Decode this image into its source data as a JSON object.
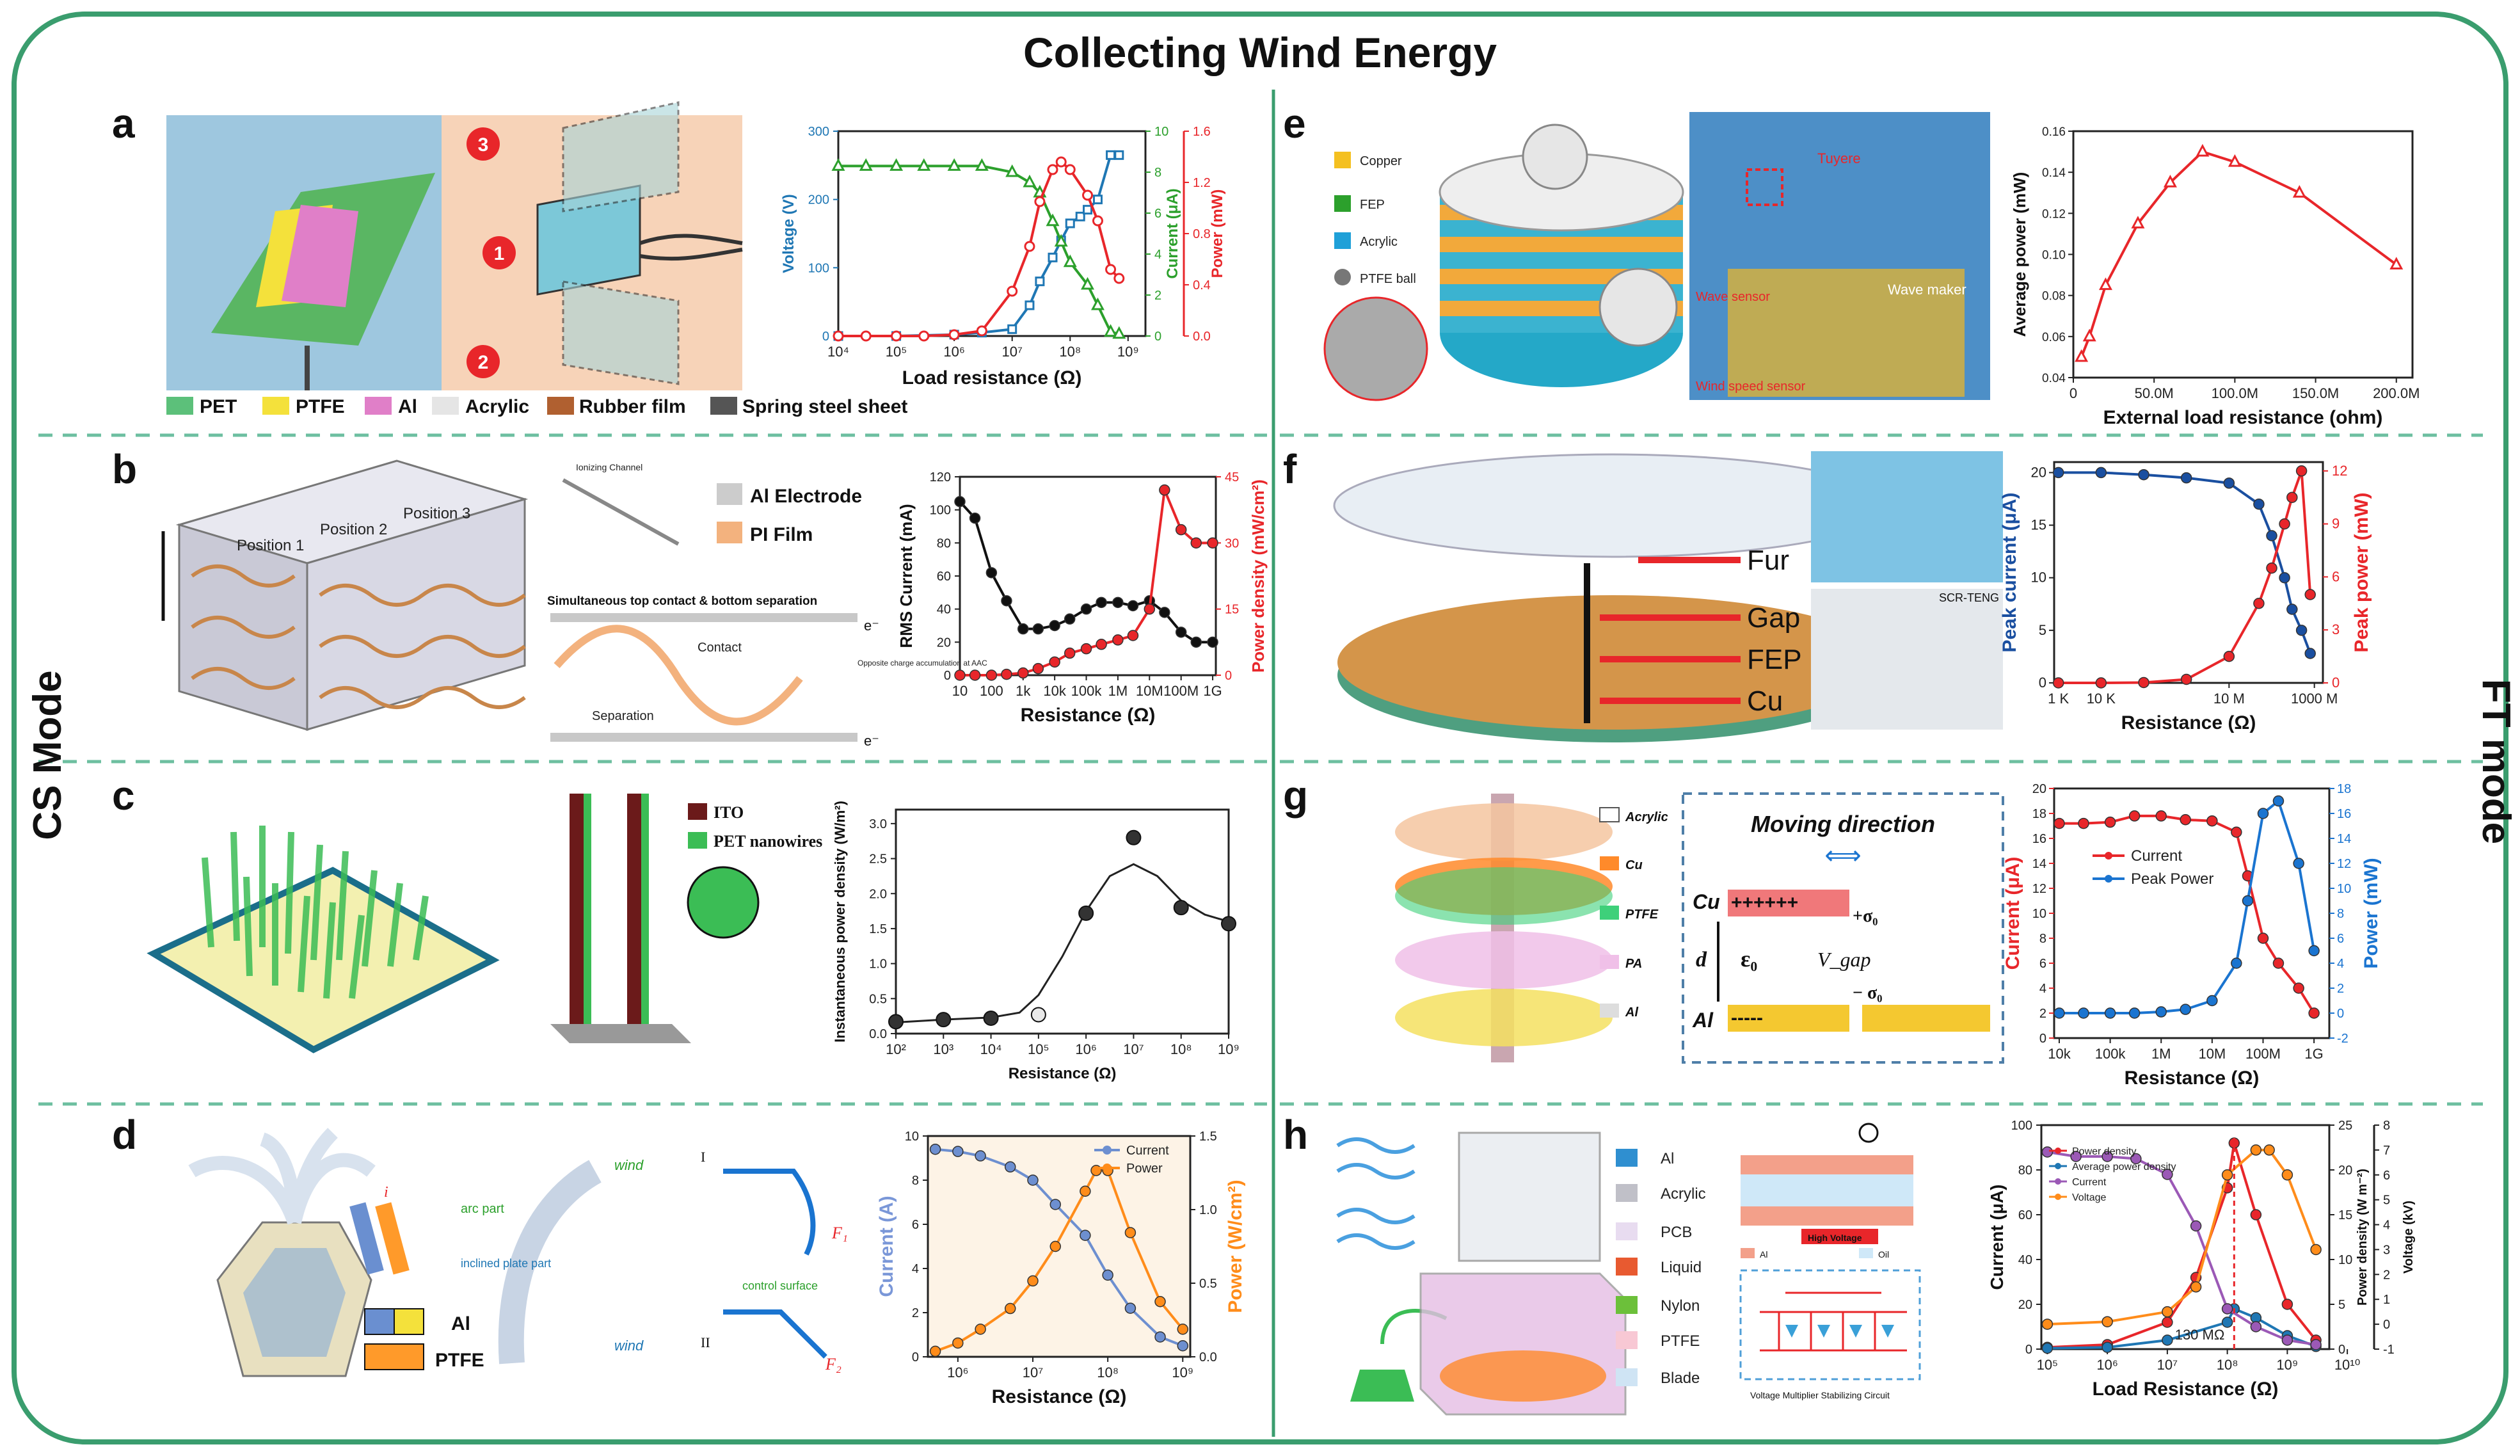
{
  "title": "Collecting Wind Energy",
  "side_labels": {
    "left": "CS Mode",
    "right": "FT mode"
  },
  "colors": {
    "frame": "#3a9d6e",
    "dash": "#6dbfa0",
    "blue": "#1f77b4",
    "green": "#2ca02c",
    "red": "#e8262a",
    "orange": "#ff7f0e",
    "navy": "#1a4fa0"
  },
  "panels": {
    "a": {
      "letter": "a",
      "legend": [
        "PET",
        "PTFE",
        "Al",
        "Acrylic",
        "Rubber film",
        "Spring steel sheet"
      ],
      "markers": [
        "3",
        "1",
        "2"
      ],
      "chart": {
        "xlabel": "Load resistance (Ω)",
        "ylabels": [
          "Voltage (V)",
          "Current (μA)",
          "Power (mW)"
        ],
        "xticks": [
          "10⁴",
          "10⁵",
          "10⁶",
          "10⁷",
          "10⁸",
          "10⁹"
        ],
        "y1ticks": [
          "0",
          "100",
          "200",
          "300"
        ],
        "y2ticks": [
          "0",
          "2",
          "4",
          "6",
          "8",
          "10"
        ],
        "y3ticks": [
          "0.0",
          "0.4",
          "0.8",
          "1.2",
          "1.6"
        ]
      }
    },
    "b": {
      "letter": "b",
      "positions": [
        "Position 1",
        "Position 2",
        "Position 3"
      ],
      "legend": [
        "Al Electrode",
        "PI Film"
      ],
      "texts": {
        "ionizing": "Ionizing Channel",
        "simul": "Simultaneous top contact & bottom separation",
        "contact": "Contact",
        "separation": "Separation",
        "opposite": "Opposite charge accumulation at AAC",
        "e1": "e⁻",
        "e2": "e⁻"
      },
      "chart": {
        "xlabel": "Resistance (Ω)",
        "ylabel": "RMS Current (mA)",
        "y2label": "Power density (mW/cm²)",
        "xticks": [
          "10",
          "100",
          "1k",
          "10k",
          "100k",
          "1M",
          "10M",
          "100M",
          "1G"
        ],
        "yticks": [
          "0",
          "20",
          "40",
          "60",
          "80",
          "100",
          "120"
        ],
        "y2ticks": [
          "0",
          "15",
          "30",
          "45"
        ]
      }
    },
    "c": {
      "letter": "c",
      "legend": [
        "ITO",
        "PET nanowires"
      ],
      "chart": {
        "xlabel": "Resistance (Ω)",
        "ylabel": "Instantaneous power density (W/m²)",
        "xticks": [
          "10²",
          "10³",
          "10⁴",
          "10⁵",
          "10⁶",
          "10⁷",
          "10⁸",
          "10⁹"
        ],
        "yticks": [
          "0.0",
          "0.5",
          "1.0",
          "1.5",
          "2.0",
          "2.5",
          "3.0"
        ]
      }
    },
    "d": {
      "letter": "d",
      "legend": [
        "Al",
        "PTFE"
      ],
      "texts": {
        "wind1": "wind",
        "wind2": "wind",
        "arc": "arc part",
        "inclined": "inclined plate part",
        "control": "control surface",
        "I": "I",
        "II": "II",
        "i": "i",
        "F1": "F₁",
        "F2": "F₂"
      },
      "chart": {
        "xlabel": "Resistance (Ω)",
        "ylabel": "Current (A)",
        "y2label": "Power (W/cm²)",
        "series": [
          "Current",
          "Power"
        ],
        "xticks": [
          "10⁶",
          "10⁷",
          "10⁸",
          "10⁹"
        ],
        "yticks": [
          "0",
          "2",
          "4",
          "6",
          "8",
          "10"
        ],
        "y2ticks": [
          "0.0",
          "0.5",
          "1.0",
          "1.5"
        ]
      }
    },
    "e": {
      "letter": "e",
      "legend": [
        "Copper",
        "FEP",
        "Acrylic",
        "PTFE ball"
      ],
      "photo_labels": [
        "Tuyere",
        "Wave maker",
        "Wave sensor",
        "Wind speed sensor"
      ],
      "chart": {
        "xlabel": "External load resistance (ohm)",
        "ylabel": "Average power (mW)",
        "xticks": [
          "0",
          "50.0M",
          "100.0M",
          "150.0M",
          "200.0M"
        ],
        "yticks": [
          "0.04",
          "0.06",
          "0.08",
          "0.10",
          "0.12",
          "0.14",
          "0.16"
        ]
      }
    },
    "f": {
      "letter": "f",
      "labels": [
        "Fur",
        "Gap",
        "FEP",
        "Cu"
      ],
      "photo_label": "SCR-TENG",
      "chart": {
        "xlabel": "Resistance (Ω)",
        "ylabel": "Peak current (μA)",
        "y2label": "Peak power (mW)",
        "xticks": [
          "1 K",
          "10 K",
          "10 M",
          "1000 M"
        ],
        "yticks": [
          "0",
          "5",
          "10",
          "15",
          "20"
        ],
        "y2ticks": [
          "0",
          "3",
          "6",
          "9",
          "12"
        ]
      }
    },
    "g": {
      "letter": "g",
      "legend": [
        "Acrylic",
        "Cu",
        "PTFE",
        "PA",
        "Al"
      ],
      "texts": {
        "moving": "Moving direction",
        "cu": "Cu",
        "al": "Al",
        "plus": "++++++",
        "minus": "-----",
        "sigma_plus": "+σ₀",
        "sigma_minus": "− σ₀",
        "d": "d",
        "eps": "ε₀",
        "vgap": "V_gap"
      },
      "chart": {
        "xlabel": "Resistance (Ω)",
        "ylabel": "Current (μA)",
        "y2label": "Power (mW)",
        "series": [
          "Current",
          "Peak Power"
        ],
        "xticks": [
          "10k",
          "100k",
          "1M",
          "10M",
          "100M",
          "1G"
        ],
        "yticks": [
          "0",
          "2",
          "4",
          "6",
          "8",
          "10",
          "12",
          "14",
          "16",
          "18",
          "20"
        ],
        "y2ticks": [
          "-2",
          "0",
          "2",
          "4",
          "6",
          "8",
          "10",
          "12",
          "14",
          "16",
          "18"
        ]
      }
    },
    "h": {
      "letter": "h",
      "legend": [
        "Al",
        "Acrylic",
        "PCB",
        "Liquid",
        "Nylon",
        "PTFE",
        "Blade"
      ],
      "texts": {
        "hv": "High Voltage",
        "al": "Al",
        "oil": "Oil",
        "circuit": "Voltage Multiplier Stabilizing Circuit"
      },
      "chart": {
        "xlabel": "Load Resistance (Ω)",
        "ylabel": "Current (μA)",
        "y2label": "Power density (W m⁻²)",
        "y3label": "Voltage (kV)",
        "series": [
          "Power density",
          "Average power density",
          "Current",
          "Voltage"
        ],
        "annotation": "130 MΩ",
        "xticks": [
          "10⁵",
          "10⁶",
          "10⁷",
          "10⁸",
          "10⁹",
          "10¹⁰"
        ],
        "yticks": [
          "0",
          "20",
          "40",
          "60",
          "80",
          "100"
        ],
        "y2ticks": [
          "0",
          "5",
          "10",
          "15",
          "20",
          "25"
        ],
        "y3ticks": [
          "-1",
          "0",
          "1",
          "2",
          "3",
          "4",
          "5",
          "6",
          "7",
          "8"
        ]
      }
    }
  },
  "chart_data": [
    {
      "id": "a",
      "type": "line",
      "title": "",
      "xlabel": "Load resistance (Ω)",
      "xscale": "log",
      "series": [
        {
          "name": "Voltage",
          "axis": "left",
          "color": "#1f77b4",
          "x": [
            10000.0,
            100000.0,
            1000000.0,
            3000000.0,
            10000000.0,
            20000000.0,
            30000000.0,
            50000000.0,
            70000000.0,
            100000000.0,
            150000000.0,
            200000000.0,
            300000000.0,
            500000000.0,
            700000000.0
          ],
          "values": [
            0,
            0,
            2,
            5,
            10,
            45,
            80,
            115,
            140,
            165,
            175,
            185,
            200,
            265,
            265
          ]
        },
        {
          "name": "Current",
          "axis": "middle",
          "color": "#2ca02c",
          "x": [
            10000.0,
            30000.0,
            100000.0,
            300000.0,
            1000000.0,
            3000000.0,
            10000000.0,
            20000000.0,
            30000000.0,
            50000000.0,
            70000000.0,
            100000000.0,
            200000000.0,
            300000000.0,
            500000000.0,
            700000000.0
          ],
          "values": [
            8.3,
            8.3,
            8.3,
            8.3,
            8.3,
            8.3,
            8.0,
            7.5,
            7.0,
            5.6,
            4.6,
            3.6,
            2.5,
            1.5,
            0.2,
            0.1
          ]
        },
        {
          "name": "Power",
          "axis": "right",
          "color": "#e8262a",
          "x": [
            10000.0,
            30000.0,
            100000.0,
            300000.0,
            1000000.0,
            3000000.0,
            10000000.0,
            20000000.0,
            30000000.0,
            50000000.0,
            70000000.0,
            100000000.0,
            200000000.0,
            300000000.0,
            500000000.0,
            700000000.0
          ],
          "values": [
            0,
            0,
            0,
            0,
            0.01,
            0.04,
            0.35,
            0.7,
            1.05,
            1.3,
            1.36,
            1.3,
            1.1,
            0.9,
            0.52,
            0.45
          ]
        }
      ]
    },
    {
      "id": "b",
      "type": "line",
      "xlabel": "Resistance (Ω)",
      "ylabel": "RMS Current (mA)",
      "xscale": "log",
      "series": [
        {
          "name": "RMS Current",
          "axis": "left",
          "color": "#111111",
          "x": [
            10,
            30,
            100,
            300,
            1000.0,
            3000.0,
            10000.0,
            30000.0,
            100000.0,
            300000.0,
            1000000.0,
            3000000.0,
            10000000.0,
            30000000.0,
            100000000.0,
            300000000.0,
            1000000000.0
          ],
          "values": [
            105,
            95,
            62,
            45,
            28,
            28,
            30,
            34,
            40,
            44,
            44,
            42,
            45,
            38,
            26,
            20,
            20
          ]
        },
        {
          "name": "Power density",
          "axis": "right",
          "color": "#e8262a",
          "x": [
            10,
            30,
            100,
            300,
            1000.0,
            3000.0,
            10000.0,
            30000.0,
            100000.0,
            300000.0,
            1000000.0,
            3000000.0,
            10000000.0,
            30000000.0,
            100000000.0,
            300000000.0,
            1000000000.0
          ],
          "values": [
            0,
            0,
            0,
            0.2,
            0.5,
            1.5,
            3,
            5,
            6,
            7,
            8,
            9,
            15,
            42,
            33,
            30,
            30
          ]
        }
      ]
    },
    {
      "id": "c",
      "type": "scatter",
      "xlabel": "Resistance (Ω)",
      "ylabel": "Instantaneous power density (W/m²)",
      "xscale": "log",
      "series": [
        {
          "name": "Power density",
          "color": "#111111",
          "x": [
            100.0,
            1000.0,
            10000.0,
            100000.0,
            1000000.0,
            10000000.0,
            100000000.0,
            1000000000.0
          ],
          "values": [
            0.17,
            0.2,
            0.22,
            0.27,
            1.72,
            2.8,
            1.8,
            1.57
          ]
        }
      ]
    },
    {
      "id": "d",
      "type": "line",
      "xlabel": "Resistance (Ω)",
      "xscale": "log",
      "series": [
        {
          "name": "Current",
          "axis": "left",
          "color": "#6d8fd0",
          "x": [
            500000.0,
            1000000.0,
            2000000.0,
            5000000.0,
            10000000.0,
            20000000.0,
            50000000.0,
            100000000.0,
            200000000.0,
            500000000.0,
            1000000000.0
          ],
          "values": [
            9.4,
            9.3,
            9.1,
            8.6,
            8.0,
            6.9,
            5.5,
            3.7,
            2.2,
            0.9,
            0.5
          ]
        },
        {
          "name": "Power",
          "axis": "right",
          "color": "#ff8c1a",
          "x": [
            500000.0,
            1000000.0,
            2000000.0,
            5000000.0,
            10000000.0,
            20000000.0,
            50000000.0,
            70000000.0,
            100000000.0,
            200000000.0,
            500000000.0,
            1000000000.0
          ],
          "values": [
            0.04,
            0.1,
            0.2,
            0.35,
            0.55,
            0.8,
            1.2,
            1.35,
            1.35,
            0.9,
            0.4,
            0.2
          ]
        }
      ]
    },
    {
      "id": "e",
      "type": "line",
      "xlabel": "External load resistance (ohm)",
      "ylabel": "Average power (mW)",
      "series": [
        {
          "name": "Average power",
          "color": "#e8262a",
          "x": [
            5000000.0,
            10000000.0,
            20000000.0,
            40000000.0,
            60000000.0,
            80000000.0,
            100000000.0,
            140000000.0,
            200000000.0
          ],
          "values": [
            0.05,
            0.06,
            0.085,
            0.115,
            0.135,
            0.15,
            0.145,
            0.13,
            0.095
          ]
        }
      ]
    },
    {
      "id": "f",
      "type": "line",
      "xlabel": "Resistance (Ω)",
      "xscale": "log",
      "series": [
        {
          "name": "Peak current",
          "axis": "left",
          "color": "#1a4fa0",
          "x": [
            1000.0,
            10000.0,
            100000.0,
            1000000.0,
            10000000.0,
            50000000.0,
            100000000.0,
            200000000.0,
            300000000.0,
            500000000.0,
            800000000.0
          ],
          "values": [
            20,
            20,
            19.8,
            19.5,
            19,
            17,
            14,
            10,
            7,
            5,
            2.8
          ]
        },
        {
          "name": "Peak power",
          "axis": "right",
          "color": "#e8262a",
          "x": [
            1000.0,
            10000.0,
            100000.0,
            1000000.0,
            10000000.0,
            50000000.0,
            100000000.0,
            200000000.0,
            300000000.0,
            500000000.0,
            800000000.0
          ],
          "values": [
            0,
            0,
            0.02,
            0.2,
            1.5,
            4.5,
            6.5,
            9,
            10.5,
            12,
            5
          ]
        }
      ]
    },
    {
      "id": "g",
      "type": "line",
      "xlabel": "Resistance (Ω)",
      "xscale": "log",
      "series": [
        {
          "name": "Current",
          "axis": "left",
          "color": "#e8262a",
          "x": [
            10000.0,
            30000.0,
            100000.0,
            300000.0,
            1000000.0,
            3000000.0,
            10000000.0,
            30000000.0,
            50000000.0,
            100000000.0,
            200000000.0,
            500000000.0,
            1000000000.0
          ],
          "values": [
            17.2,
            17.2,
            17.3,
            17.8,
            17.8,
            17.5,
            17.4,
            16.5,
            13,
            8,
            6,
            4,
            2
          ]
        },
        {
          "name": "Peak Power",
          "axis": "right",
          "color": "#1a74d0",
          "x": [
            10000.0,
            30000.0,
            100000.0,
            300000.0,
            1000000.0,
            3000000.0,
            10000000.0,
            30000000.0,
            50000000.0,
            100000000.0,
            200000000.0,
            500000000.0,
            1000000000.0
          ],
          "values": [
            0,
            0,
            0,
            0,
            0.1,
            0.3,
            1,
            4,
            9,
            16,
            17,
            12,
            5
          ]
        }
      ]
    },
    {
      "id": "h",
      "type": "line",
      "xlabel": "Load Resistance (Ω)",
      "xscale": "log",
      "series": [
        {
          "name": "Power density",
          "axis": "middle",
          "color": "#e8262a",
          "x": [
            100000.0,
            1000000.0,
            10000000.0,
            30000000.0,
            100000000.0,
            130000000.0,
            300000000.0,
            1000000000.0,
            3000000000.0
          ],
          "values": [
            0.2,
            0.5,
            3,
            8,
            18,
            23,
            15,
            5,
            1
          ]
        },
        {
          "name": "Average power density",
          "axis": "middle",
          "color": "#1f77b4",
          "x": [
            100000.0,
            1000000.0,
            10000000.0,
            100000000.0,
            130000000.0,
            300000000.0,
            1000000000.0,
            3000000000.0
          ],
          "values": [
            0.1,
            0.2,
            1,
            3,
            4.5,
            3.5,
            1.5,
            0.3
          ]
        },
        {
          "name": "Current",
          "axis": "left",
          "color": "#9b59b6",
          "x": [
            100000.0,
            300000.0,
            1000000.0,
            3000000.0,
            10000000.0,
            30000000.0,
            100000000.0,
            300000000.0,
            1000000000.0,
            3000000000.0
          ],
          "values": [
            88,
            86,
            86,
            85,
            78,
            55,
            18,
            10,
            4,
            2
          ]
        },
        {
          "name": "Voltage",
          "axis": "right",
          "color": "#ff8c1a",
          "x": [
            100000.0,
            1000000.0,
            10000000.0,
            30000000.0,
            100000000.0,
            300000000.0,
            500000000.0,
            1000000000.0,
            3000000000.0
          ],
          "values": [
            0,
            0.1,
            0.5,
            1.5,
            6,
            7,
            7,
            6,
            3
          ]
        }
      ],
      "annotation": "130 MΩ"
    }
  ]
}
